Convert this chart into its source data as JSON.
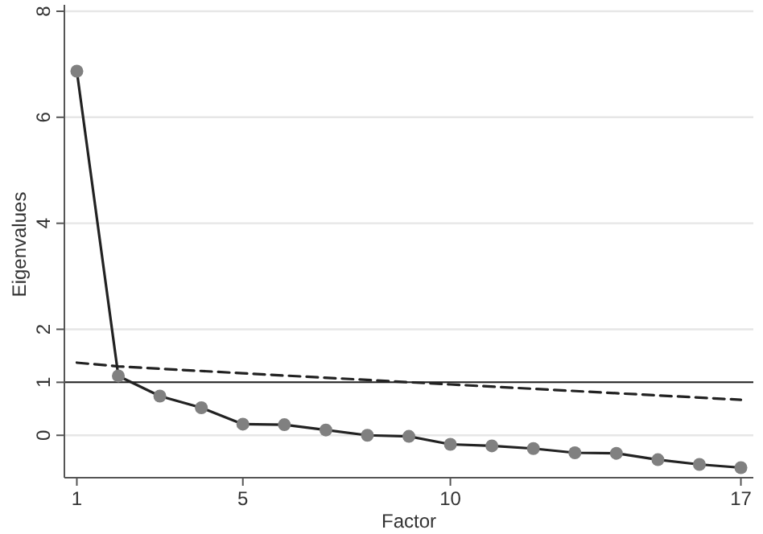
{
  "chart_data": {
    "type": "line",
    "xlabel": "Factor",
    "ylabel": "Eigenvalues",
    "xlim": [
      0.7,
      17.3
    ],
    "xticks": [
      1,
      5,
      10,
      17
    ],
    "ylim": [
      -0.8,
      8
    ],
    "yticks": [
      0,
      1,
      2,
      4,
      6,
      8
    ],
    "grid": "y",
    "series": [
      {
        "color": "#222222",
        "marker": "circle",
        "line_style": "solid",
        "x": [
          1,
          2,
          3,
          4,
          5,
          6,
          7,
          8,
          9,
          10,
          11,
          12,
          13,
          14,
          15,
          16,
          17
        ],
        "values": [
          6.87,
          1.12,
          0.74,
          0.52,
          0.21,
          0.2,
          0.1,
          0,
          -0.02,
          -0.17,
          -0.2,
          -0.25,
          -0.33,
          -0.34,
          -0.46,
          -0.55,
          -0.61
        ]
      },
      {
        "color": "#222222",
        "marker": "none",
        "line_style": "dashed",
        "x": [
          1,
          2,
          5,
          10,
          17
        ],
        "values": [
          1.37,
          1.3,
          1.17,
          0.96,
          0.67
        ]
      }
    ],
    "ref_lines": [
      {
        "axis": "y",
        "value": 1,
        "color": "#222222",
        "line_style": "solid"
      }
    ]
  }
}
